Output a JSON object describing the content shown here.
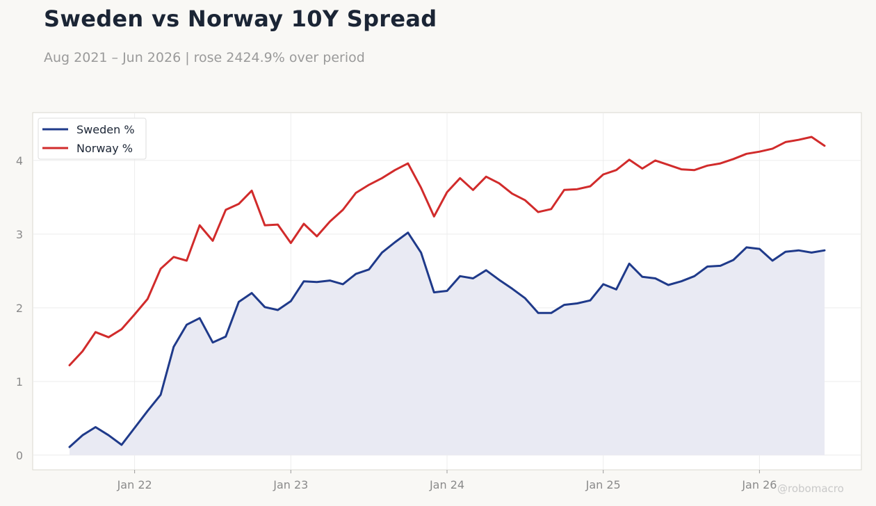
{
  "header": {
    "title": "Sweden vs Norway 10Y Spread",
    "subtitle": "Aug 2021 – Jun 2026 | rose 2424.9% over period"
  },
  "watermark": "@robomacro",
  "colors": {
    "sweden": "#1f3a8a",
    "norway": "#d12b2b",
    "sweden_fill": "#e9eaf3",
    "grid": "#ececec",
    "frame": "#d9d7cf",
    "plot_bg": "#ffffff"
  },
  "chart_data": {
    "type": "line",
    "title": "Sweden vs Norway 10Y Spread",
    "subtitle": "Aug 2021 – Jun 2026 | rose 2424.9% over period",
    "xlabel": "",
    "ylabel": "",
    "x_start": "2021-08",
    "x_end": "2026-06",
    "x_ticks": [
      {
        "date": "2022-01",
        "label": "Jan 22"
      },
      {
        "date": "2023-01",
        "label": "Jan 23"
      },
      {
        "date": "2024-01",
        "label": "Jan 24"
      },
      {
        "date": "2025-01",
        "label": "Jan 25"
      },
      {
        "date": "2026-01",
        "label": "Jan 26"
      }
    ],
    "ylim": [
      -0.2,
      4.65
    ],
    "y_ticks": [
      0,
      1,
      2,
      3,
      4
    ],
    "grid": true,
    "legend": "top-left",
    "x": [
      "2021-08",
      "2021-09",
      "2021-10",
      "2021-11",
      "2021-12",
      "2022-01",
      "2022-02",
      "2022-03",
      "2022-04",
      "2022-05",
      "2022-06",
      "2022-07",
      "2022-08",
      "2022-09",
      "2022-10",
      "2022-11",
      "2022-12",
      "2023-01",
      "2023-02",
      "2023-03",
      "2023-04",
      "2023-05",
      "2023-06",
      "2023-07",
      "2023-08",
      "2023-09",
      "2023-10",
      "2023-11",
      "2023-12",
      "2024-01",
      "2024-02",
      "2024-03",
      "2024-04",
      "2024-05",
      "2024-06",
      "2024-07",
      "2024-08",
      "2024-09",
      "2024-10",
      "2024-11",
      "2024-12",
      "2025-01",
      "2025-02",
      "2025-03",
      "2025-04",
      "2025-05",
      "2025-06",
      "2025-07",
      "2025-08",
      "2025-09",
      "2025-10",
      "2025-11",
      "2025-12",
      "2026-01",
      "2026-02",
      "2026-03",
      "2026-04",
      "2026-05",
      "2026-06"
    ],
    "series": [
      {
        "name": "Sweden %",
        "fill": true,
        "values": [
          0.11,
          0.27,
          0.38,
          0.27,
          0.14,
          0.37,
          0.6,
          0.82,
          1.47,
          1.77,
          1.86,
          1.53,
          1.61,
          2.08,
          2.2,
          2.01,
          1.97,
          2.09,
          2.36,
          2.35,
          2.37,
          2.32,
          2.46,
          2.52,
          2.75,
          2.89,
          3.02,
          2.75,
          2.21,
          2.23,
          2.43,
          2.4,
          2.51,
          2.38,
          2.26,
          2.13,
          1.93,
          1.93,
          2.04,
          2.06,
          2.1,
          2.32,
          2.25,
          2.6,
          2.42,
          2.4,
          2.31,
          2.36,
          2.43,
          2.56,
          2.57,
          2.65,
          2.82,
          2.8,
          2.64,
          2.76,
          2.78,
          2.75,
          2.78
        ]
      },
      {
        "name": "Norway %",
        "fill": false,
        "values": [
          1.22,
          1.41,
          1.67,
          1.6,
          1.71,
          1.91,
          2.12,
          2.53,
          2.69,
          2.64,
          3.12,
          2.91,
          3.33,
          3.41,
          3.59,
          3.12,
          3.13,
          2.88,
          3.14,
          2.97,
          3.17,
          3.33,
          3.56,
          3.67,
          3.76,
          3.87,
          3.96,
          3.63,
          3.24,
          3.57,
          3.76,
          3.6,
          3.78,
          3.69,
          3.55,
          3.46,
          3.3,
          3.34,
          3.6,
          3.61,
          3.65,
          3.81,
          3.87,
          4.01,
          3.89,
          4.0,
          3.94,
          3.88,
          3.87,
          3.93,
          3.96,
          4.02,
          4.09,
          4.12,
          4.16,
          4.25,
          4.28,
          4.32,
          4.2
        ]
      }
    ]
  }
}
